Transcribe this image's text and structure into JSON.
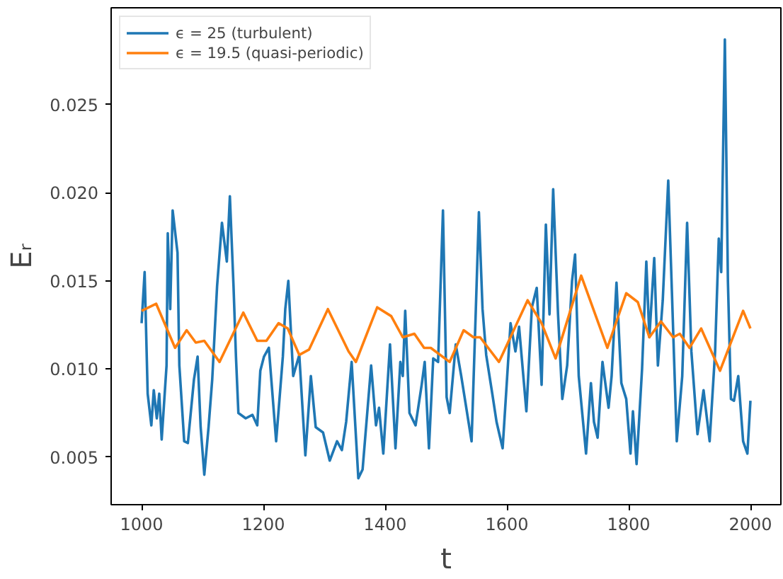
{
  "chart_data": {
    "type": "line",
    "xlabel": "t",
    "ylabel": "Eᵣ",
    "xlim": [
      950,
      2050
    ],
    "ylim": [
      0.0023,
      0.0305
    ],
    "xticks": [
      1000,
      1200,
      1400,
      1600,
      1800,
      2000
    ],
    "yticks": [
      0.005,
      {
        "value": 0.01,
        "label": "0.010"
      },
      0.015,
      {
        "value": 0.02,
        "label": "0.020"
      },
      0.025
    ],
    "grid": false,
    "legend": "top left",
    "marker": "none",
    "line_style": "solid",
    "series": [
      {
        "name": "ϵ = 25 (turbulent)",
        "color": "#1f77b4",
        "x": [
          1000,
          1005,
          1010,
          1016,
          1020,
          1025,
          1029,
          1033,
          1041,
          1043,
          1047,
          1051,
          1059,
          1062,
          1070,
          1076,
          1086,
          1092,
          1097,
          1103,
          1110,
          1116,
          1124,
          1132,
          1140,
          1145,
          1151,
          1155,
          1159,
          1171,
          1182,
          1190,
          1195,
          1201,
          1209,
          1221,
          1232,
          1236,
          1241,
          1249,
          1259,
          1269,
          1278,
          1286,
          1298,
          1309,
          1321,
          1329,
          1336,
          1345,
          1356,
          1363,
          1377,
          1385,
          1390,
          1397,
          1408,
          1417,
          1425,
          1429,
          1433,
          1440,
          1450,
          1460,
          1465,
          1472,
          1479,
          1487,
          1495,
          1501,
          1506,
          1516,
          1525,
          1542,
          1549,
          1554,
          1560,
          1566,
          1576,
          1583,
          1593,
          1606,
          1614,
          1620,
          1632,
          1641,
          1649,
          1657,
          1664,
          1670,
          1676,
          1684,
          1691,
          1699,
          1707,
          1712,
          1718,
          1730,
          1738,
          1743,
          1749,
          1757,
          1767,
          1772,
          1780,
          1788,
          1796,
          1803,
          1807,
          1813,
          1822,
          1829,
          1834,
          1842,
          1848,
          1856,
          1865,
          1871,
          1879,
          1888,
          1896,
          1903,
          1913,
          1923,
          1933,
          1942,
          1948,
          1952,
          1958,
          1963,
          1968,
          1973,
          1980,
          1988,
          1995,
          2000
        ],
        "values": [
          0.0126,
          0.0155,
          0.0086,
          0.0068,
          0.0088,
          0.0072,
          0.0086,
          0.006,
          0.0102,
          0.0177,
          0.0134,
          0.019,
          0.0166,
          0.0102,
          0.0059,
          0.0058,
          0.0094,
          0.0107,
          0.0067,
          0.004,
          0.0067,
          0.0094,
          0.0147,
          0.0183,
          0.0161,
          0.0198,
          0.0147,
          0.0107,
          0.0075,
          0.0072,
          0.0074,
          0.0068,
          0.0099,
          0.0107,
          0.0112,
          0.0059,
          0.0107,
          0.0134,
          0.015,
          0.0096,
          0.0108,
          0.0051,
          0.0096,
          0.0067,
          0.0064,
          0.0048,
          0.0059,
          0.0054,
          0.007,
          0.0104,
          0.0038,
          0.0043,
          0.0102,
          0.0068,
          0.0078,
          0.0052,
          0.0114,
          0.0055,
          0.0104,
          0.0096,
          0.0133,
          0.0075,
          0.0068,
          0.0091,
          0.0104,
          0.0055,
          0.0106,
          0.0104,
          0.019,
          0.0084,
          0.0075,
          0.0114,
          0.0096,
          0.0059,
          0.0134,
          0.0189,
          0.0134,
          0.0108,
          0.0086,
          0.007,
          0.0055,
          0.0126,
          0.011,
          0.0124,
          0.0076,
          0.0135,
          0.0146,
          0.0091,
          0.0182,
          0.0131,
          0.0202,
          0.0131,
          0.0083,
          0.0102,
          0.015,
          0.0165,
          0.0096,
          0.0052,
          0.0092,
          0.007,
          0.0061,
          0.0104,
          0.0078,
          0.0096,
          0.0149,
          0.0092,
          0.0083,
          0.0052,
          0.0076,
          0.0046,
          0.01,
          0.0161,
          0.0118,
          0.0163,
          0.0102,
          0.0139,
          0.0207,
          0.0144,
          0.0059,
          0.0096,
          0.0183,
          0.011,
          0.0063,
          0.0088,
          0.0059,
          0.011,
          0.0174,
          0.0155,
          0.0287,
          0.015,
          0.0083,
          0.0082,
          0.0096,
          0.0059,
          0.0052,
          0.0082
        ]
      },
      {
        "name": "ϵ = 19.5 (quasi-periodic)",
        "color": "#ff7f0e",
        "x": [
          1000,
          1024,
          1055,
          1074,
          1089,
          1103,
          1128,
          1167,
          1190,
          1205,
          1225,
          1240,
          1259,
          1275,
          1306,
          1340,
          1352,
          1387,
          1410,
          1429,
          1448,
          1464,
          1475,
          1506,
          1529,
          1545,
          1556,
          1587,
          1634,
          1657,
          1680,
          1722,
          1765,
          1796,
          1815,
          1834,
          1853,
          1873,
          1884,
          1900,
          1919,
          1950,
          1988,
          2000
        ],
        "values": [
          0.0133,
          0.0137,
          0.0112,
          0.0122,
          0.0115,
          0.0116,
          0.0104,
          0.0132,
          0.0116,
          0.0116,
          0.0126,
          0.0123,
          0.0108,
          0.0111,
          0.0134,
          0.011,
          0.0104,
          0.0135,
          0.013,
          0.0118,
          0.012,
          0.0112,
          0.0112,
          0.0104,
          0.0122,
          0.0118,
          0.0118,
          0.0104,
          0.0139,
          0.0126,
          0.0106,
          0.0153,
          0.0112,
          0.0143,
          0.0138,
          0.0118,
          0.0127,
          0.0118,
          0.012,
          0.0112,
          0.0123,
          0.0099,
          0.0133,
          0.0123
        ]
      }
    ]
  }
}
